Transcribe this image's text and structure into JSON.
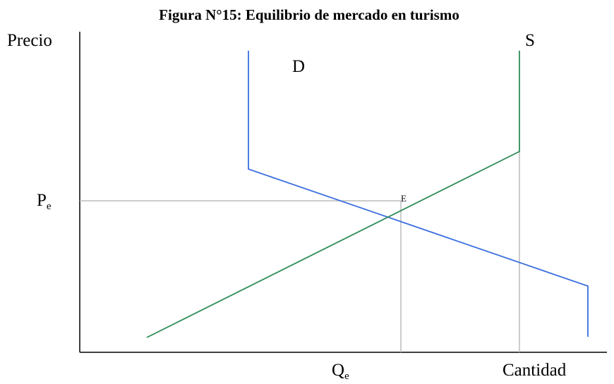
{
  "title": "Figura N°15: Equilibrio de mercado en turismo",
  "y_axis_label": "Precio",
  "x_axis_label": "Cantidad",
  "demand_label": "D",
  "supply_label": "S",
  "equilibrium_label": "E",
  "price_label": {
    "main": "P",
    "sub": "e"
  },
  "quantity_label": {
    "main": "Q",
    "sub": "e"
  }
}
